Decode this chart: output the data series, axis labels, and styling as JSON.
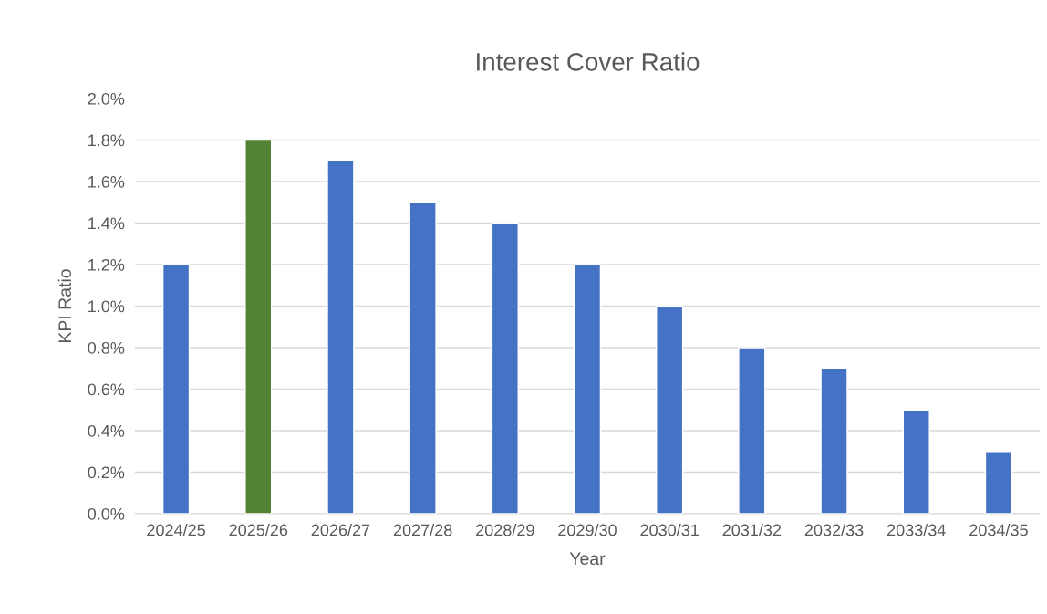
{
  "chart_data": {
    "type": "bar",
    "title": "Interest Cover Ratio",
    "xlabel": "Year",
    "ylabel": "KPI Ratio",
    "categories": [
      "2024/25",
      "2025/26",
      "2026/27",
      "2027/28",
      "2028/29",
      "2029/30",
      "2030/31",
      "2031/32",
      "2032/33",
      "2033/34",
      "2034/35"
    ],
    "values": [
      1.2,
      1.8,
      1.7,
      1.5,
      1.4,
      1.2,
      1.0,
      0.8,
      0.7,
      0.5,
      0.3
    ],
    "colors": [
      "#4472c4",
      "#548235",
      "#4472c4",
      "#4472c4",
      "#4472c4",
      "#4472c4",
      "#4472c4",
      "#4472c4",
      "#4472c4",
      "#4472c4",
      "#4472c4"
    ],
    "ylim": [
      0,
      2.0
    ],
    "yticks": [
      {
        "value": 0,
        "label": "0.0%"
      },
      {
        "value": 0.2,
        "label": "0.2%"
      },
      {
        "value": 0.4,
        "label": "0.4%"
      },
      {
        "value": 0.6,
        "label": "0.6%"
      },
      {
        "value": 0.8,
        "label": "0.8%"
      },
      {
        "value": 1.0,
        "label": "1.0%"
      },
      {
        "value": 1.2,
        "label": "1.2%"
      },
      {
        "value": 1.4,
        "label": "1.4%"
      },
      {
        "value": 1.6,
        "label": "1.6%"
      },
      {
        "value": 1.8,
        "label": "1.8%"
      },
      {
        "value": 2.0,
        "label": "2.0%"
      }
    ],
    "grid": "y",
    "legend": false
  }
}
